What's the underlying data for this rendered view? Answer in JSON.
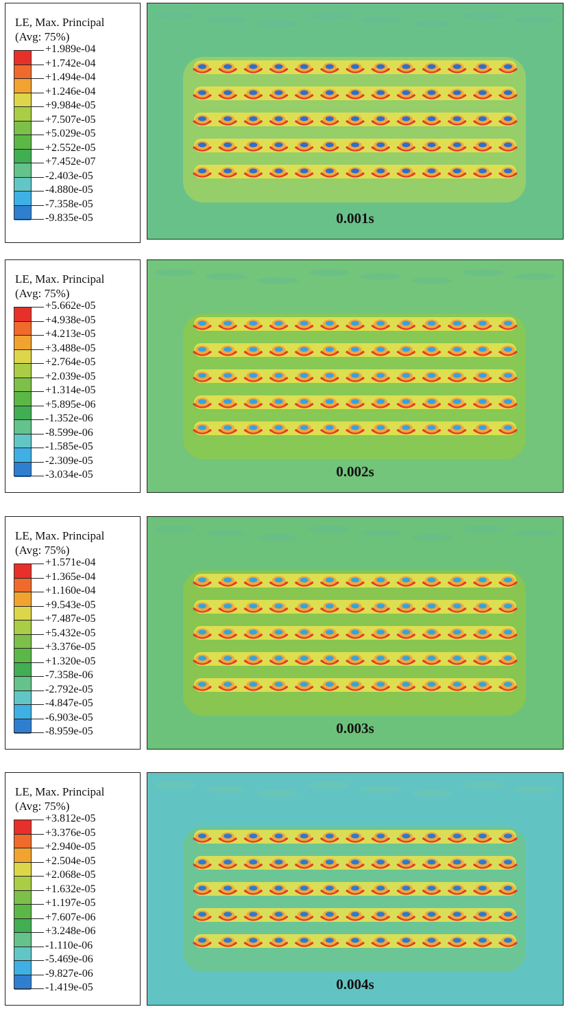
{
  "panels": [
    {
      "legend_title_line1": "LE, Max. Principal",
      "legend_title_line2": "(Avg: 75%)",
      "legend_values": [
        "+1.989e-04",
        "+1.742e-04",
        "+1.494e-04",
        "+1.246e-04",
        "+9.984e-05",
        "+7.507e-05",
        "+5.029e-05",
        "+2.552e-05",
        "+7.452e-07",
        "-2.403e-05",
        "-4.880e-05",
        "-7.358e-05",
        "-9.835e-05"
      ],
      "time_label": "0.001s",
      "background_color": "#69c18a",
      "band_color": "#9fd064",
      "hole_color": "#2c6fd0"
    },
    {
      "legend_title_line1": "LE, Max. Principal",
      "legend_title_line2": "(Avg: 75%)",
      "legend_values": [
        "+5.662e-05",
        "+4.938e-05",
        "+4.213e-05",
        "+3.488e-05",
        "+2.764e-05",
        "+2.039e-05",
        "+1.314e-05",
        "+5.895e-06",
        "-1.352e-06",
        "-8.599e-06",
        "-1.585e-05",
        "-2.309e-05",
        "-3.034e-05"
      ],
      "time_label": "0.002s",
      "background_color": "#72c57a",
      "band_color": "#8cc84e",
      "hole_color": "#3aa0e0"
    },
    {
      "legend_title_line1": "LE, Max. Principal",
      "legend_title_line2": "(Avg: 75%)",
      "legend_values": [
        "+1.571e-04",
        "+1.365e-04",
        "+1.160e-04",
        "+9.543e-05",
        "+7.487e-05",
        "+5.432e-05",
        "+3.376e-05",
        "+1.320e-05",
        "-7.358e-06",
        "-2.792e-05",
        "-4.847e-05",
        "-6.903e-05",
        "-8.959e-05"
      ],
      "time_label": "0.003s",
      "background_color": "#6cc27a",
      "band_color": "#8dc54a",
      "hole_color": "#35a4dc"
    },
    {
      "legend_title_line1": "LE, Max. Principal",
      "legend_title_line2": "(Avg: 75%)",
      "legend_values": [
        "+3.812e-05",
        "+3.376e-05",
        "+2.940e-05",
        "+2.504e-05",
        "+2.068e-05",
        "+1.632e-05",
        "+1.197e-05",
        "+7.607e-06",
        "+3.248e-06",
        "-1.110e-06",
        "-5.469e-06",
        "-9.827e-06",
        "-1.419e-05"
      ],
      "time_label": "0.004s",
      "background_color": "#62c4c2",
      "band_color": "#6fc68c",
      "hole_color": "#2d7ad0"
    }
  ],
  "colorbar_colors": [
    "#e8302a",
    "#f06a2c",
    "#f2a32f",
    "#ddd64a",
    "#a9cd45",
    "#7cc04a",
    "#5bb847",
    "#41ae54",
    "#63c38a",
    "#62c6c6",
    "#3fb0e3",
    "#2f7fd0",
    "#2a4fb0"
  ]
}
